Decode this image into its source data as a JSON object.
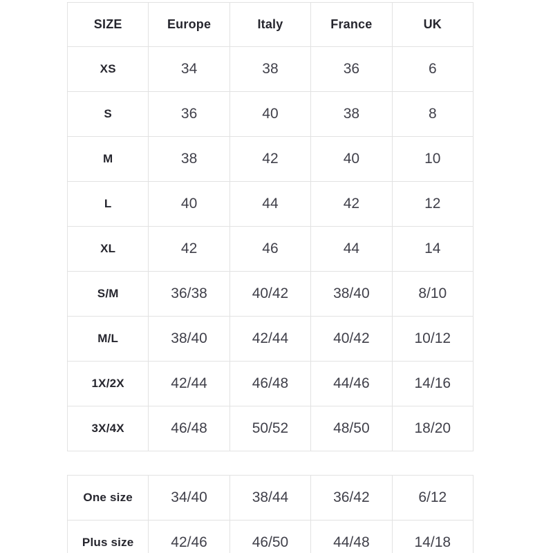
{
  "page": {
    "background_color": "#ffffff",
    "table_border_color": "#e2e2e2",
    "header_text_color": "#26262e",
    "value_text_color": "#40404a"
  },
  "size_chart": {
    "columns": [
      "SIZE",
      "Europe",
      "Italy",
      "France",
      "UK"
    ],
    "rows": [
      {
        "label": "XS",
        "values": [
          "34",
          "38",
          "36",
          "6"
        ]
      },
      {
        "label": "S",
        "values": [
          "36",
          "40",
          "38",
          "8"
        ]
      },
      {
        "label": "M",
        "values": [
          "38",
          "42",
          "40",
          "10"
        ]
      },
      {
        "label": "L",
        "values": [
          "40",
          "44",
          "42",
          "12"
        ]
      },
      {
        "label": "XL",
        "values": [
          "42",
          "46",
          "44",
          "14"
        ]
      },
      {
        "label": "S/M",
        "values": [
          "36/38",
          "40/42",
          "38/40",
          "8/10"
        ]
      },
      {
        "label": "M/L",
        "values": [
          "38/40",
          "42/44",
          "40/42",
          "10/12"
        ]
      },
      {
        "label": "1X/2X",
        "values": [
          "42/44",
          "46/48",
          "44/46",
          "14/16"
        ]
      },
      {
        "label": "3X/4X",
        "values": [
          "46/48",
          "50/52",
          "48/50",
          "18/20"
        ]
      }
    ]
  },
  "special_size_chart": {
    "rows": [
      {
        "label": "One size",
        "values": [
          "34/40",
          "38/44",
          "36/42",
          "6/12"
        ]
      },
      {
        "label": "Plus size",
        "values": [
          "42/46",
          "46/50",
          "44/48",
          "14/18"
        ]
      }
    ]
  }
}
